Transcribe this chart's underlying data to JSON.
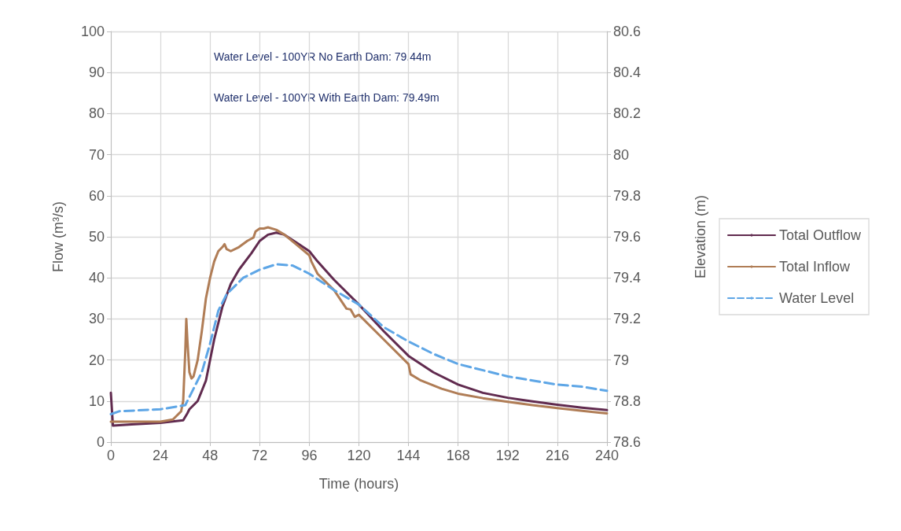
{
  "chart_data": {
    "type": "line",
    "xlabel": "Time (hours)",
    "ylabel": "Flow (m³/s)",
    "y2label": "Elevation (m)",
    "xlim": [
      0,
      240
    ],
    "xticks": [
      0,
      24,
      48,
      72,
      96,
      120,
      144,
      168,
      192,
      216,
      240
    ],
    "ylim": [
      0,
      100
    ],
    "yticks": [
      0,
      10,
      20,
      30,
      40,
      50,
      60,
      70,
      80,
      90,
      100
    ],
    "y2lim": [
      78.6,
      80.6
    ],
    "y2ticks": [
      78.6,
      78.8,
      79,
      79.2,
      79.4,
      79.6,
      79.8,
      80,
      80.2,
      80.4,
      80.6
    ],
    "grid": true,
    "legend": "right",
    "marker": "none",
    "annotations": [
      "Water Level - 100YR No Earth Dam: 79.44m",
      "Water Level - 100YR With Earth Dam: 79.49m"
    ],
    "series": [
      {
        "name": "Total Outflow",
        "color": "#612b4f",
        "line_style": "solid",
        "x": [
          0,
          1,
          10,
          24,
          35,
          37,
          38,
          42,
          46,
          50,
          54,
          58,
          62,
          68,
          72,
          76,
          80,
          84,
          90,
          96,
          100,
          108,
          120,
          132,
          144,
          156,
          168,
          180,
          192,
          204,
          216,
          228,
          240
        ],
        "values": [
          12,
          4,
          4.3,
          4.7,
          5.3,
          7,
          8,
          10,
          15,
          25,
          33,
          38.5,
          42,
          46,
          49,
          50.5,
          51,
          50.5,
          48.5,
          46.5,
          44,
          39.5,
          33.5,
          27,
          21,
          17,
          14,
          12,
          10.8,
          9.9,
          9.1,
          8.4,
          7.8
        ]
      },
      {
        "name": "Total Inflow",
        "color": "#b07d56",
        "line_style": "solid",
        "x": [
          0,
          10,
          24,
          30,
          34,
          35,
          36,
          36.5,
          37,
          38,
          39,
          40,
          42,
          44,
          46,
          48,
          50,
          52,
          54,
          55,
          56,
          58,
          62,
          66,
          69,
          70,
          72,
          74,
          76,
          80,
          84,
          90,
          96,
          97,
          100,
          108,
          114,
          116,
          118,
          120,
          132,
          144,
          145,
          150,
          160,
          168,
          180,
          192,
          204,
          216,
          228,
          240
        ],
        "values": [
          5,
          5,
          5,
          5.5,
          7.5,
          10,
          22,
          30,
          25,
          17,
          15.5,
          16,
          20,
          27,
          35,
          40,
          44,
          46.5,
          47.5,
          48.2,
          47,
          46.5,
          47.5,
          49,
          49.8,
          51.3,
          52,
          52,
          52.3,
          51.7,
          50.5,
          48,
          45.5,
          44,
          41,
          37,
          32.5,
          32.3,
          30.5,
          31,
          25,
          19,
          16.5,
          15,
          13,
          11.8,
          10.7,
          9.8,
          9,
          8.3,
          7.6,
          7
        ]
      },
      {
        "name": "Water Level",
        "color": "#5ea6e6",
        "line_style": "dashed",
        "axis": "y2",
        "x": [
          0,
          4,
          24,
          36,
          40,
          44,
          48,
          52,
          56,
          64,
          72,
          80,
          88,
          96,
          108,
          120,
          132,
          144,
          156,
          168,
          180,
          192,
          204,
          216,
          228,
          240
        ],
        "values": [
          78.736,
          78.75,
          78.76,
          78.78,
          78.86,
          78.94,
          79.08,
          79.24,
          79.32,
          79.4,
          79.44,
          79.466,
          79.46,
          79.42,
          79.34,
          79.27,
          79.16,
          79.09,
          79.03,
          78.98,
          78.95,
          78.92,
          78.9,
          78.88,
          78.87,
          78.85
        ]
      }
    ]
  }
}
